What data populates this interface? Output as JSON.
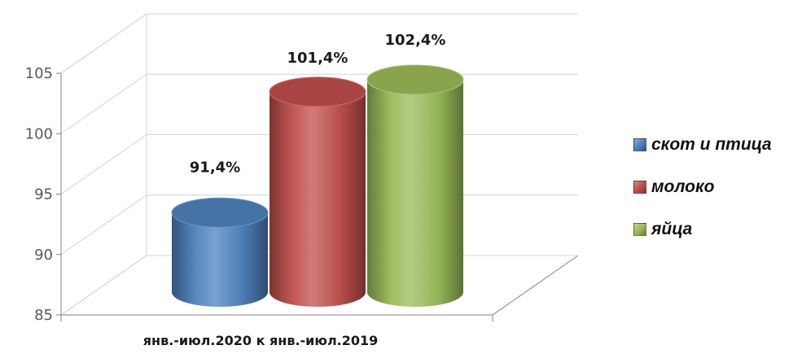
{
  "chart_data": {
    "type": "bar",
    "categories": [
      "янв.-июл.2020 к  янв.-июл.2019"
    ],
    "series": [
      {
        "name": "скот и птица",
        "values": [
          91.4
        ],
        "color": "#4f81bd",
        "label": "91,4%"
      },
      {
        "name": "молоко",
        "values": [
          101.4
        ],
        "color": "#c0504d",
        "label": "101,4%"
      },
      {
        "name": "яйца",
        "values": [
          102.4
        ],
        "color": "#9bbb59",
        "label": "102,4%"
      }
    ],
    "yticks": [
      "85",
      "90",
      "95",
      "100",
      "105"
    ],
    "ylim": [
      85,
      105
    ],
    "title": "",
    "xlabel": "",
    "ylabel": "",
    "grid": true,
    "legend_position": "right",
    "style": "3d-cylinder"
  }
}
